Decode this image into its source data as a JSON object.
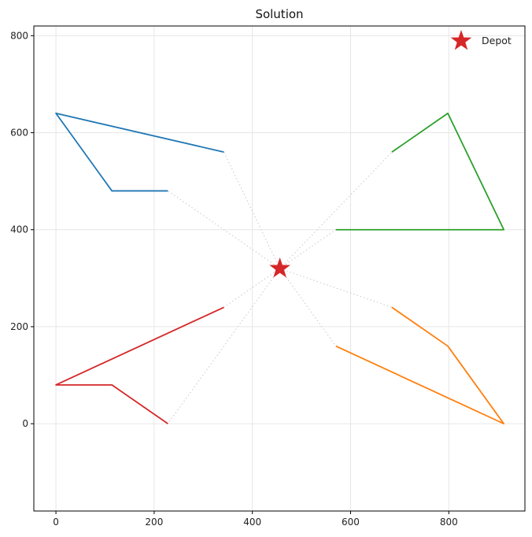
{
  "chart_data": {
    "type": "line",
    "title": "Solution",
    "xlabel": "",
    "ylabel": "",
    "xlim": [
      -45,
      955
    ],
    "ylim": [
      -180,
      820
    ],
    "xticks": [
      0,
      200,
      400,
      600,
      800
    ],
    "yticks": [
      0,
      200,
      400,
      600,
      800
    ],
    "grid": true,
    "legend": {
      "placement": "top-right",
      "entries": [
        {
          "label": "Depot",
          "marker": "star",
          "color": "#d62728"
        }
      ]
    },
    "depot": {
      "x": 456,
      "y": 320
    },
    "routes": [
      {
        "color": "#1f77b4",
        "points": [
          [
            342,
            560
          ],
          [
            0,
            640
          ],
          [
            114,
            480
          ],
          [
            228,
            480
          ]
        ]
      },
      {
        "color": "#ff7f0e",
        "points": [
          [
            684,
            240
          ],
          [
            798,
            160
          ],
          [
            912,
            0
          ],
          [
            570,
            160
          ]
        ]
      },
      {
        "color": "#2ca02c",
        "points": [
          [
            570,
            400
          ],
          [
            912,
            400
          ],
          [
            798,
            640
          ],
          [
            684,
            560
          ]
        ]
      },
      {
        "color": "#d62728",
        "points": [
          [
            228,
            0
          ],
          [
            114,
            80
          ],
          [
            0,
            80
          ],
          [
            342,
            240
          ]
        ]
      }
    ]
  }
}
